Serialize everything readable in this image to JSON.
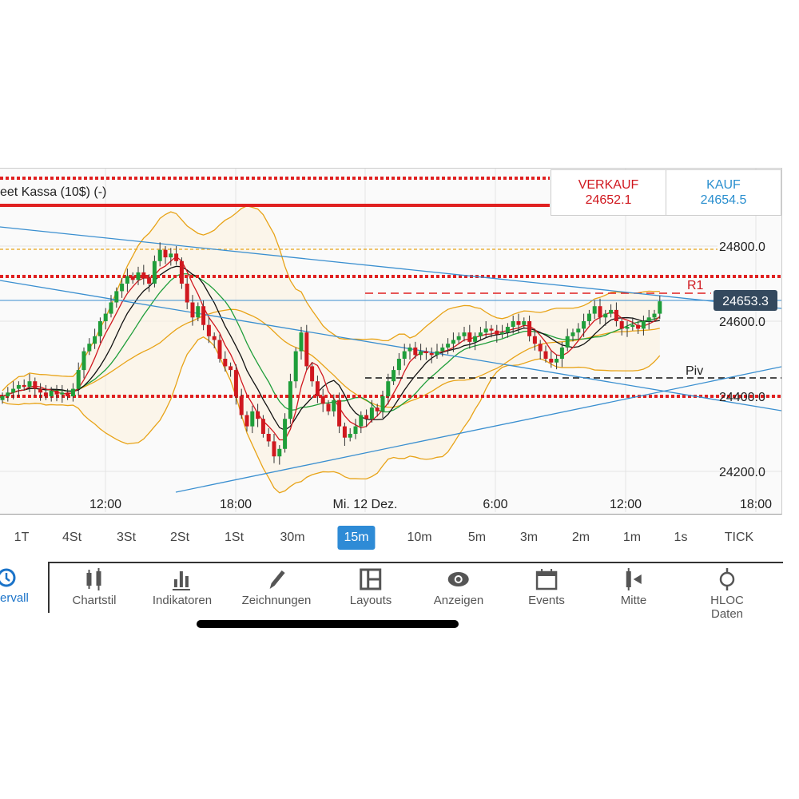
{
  "instrument_label": "eet Kassa (10$) (-)",
  "sell": {
    "label": "VERKAUF",
    "price": "24652.1",
    "color": "#d0181f"
  },
  "buy": {
    "label": "KAUF",
    "price": "24654.5",
    "color": "#2a8fcf"
  },
  "current_price": "24653.3",
  "levels": {
    "r1": "R1",
    "piv": "Piv"
  },
  "chart_data": {
    "type": "candlestick",
    "interval": "15m",
    "y_ticks": [
      "24800.0",
      "24600.0",
      "24400.0",
      "24200.0"
    ],
    "x_ticks": [
      "12:00",
      "18:00",
      "Mi. 12 Dez.",
      "6:00",
      "12:00",
      "18:00"
    ],
    "closes": [
      24400,
      24410,
      24420,
      24430,
      24425,
      24440,
      24420,
      24410,
      24400,
      24415,
      24405,
      24410,
      24400,
      24420,
      24470,
      24520,
      24540,
      24560,
      24600,
      24620,
      24650,
      24680,
      24700,
      24720,
      24710,
      24730,
      24715,
      24700,
      24760,
      24790,
      24770,
      24780,
      24760,
      24700,
      24650,
      24610,
      24640,
      24590,
      24560,
      24550,
      24500,
      24480,
      24470,
      24400,
      24350,
      24320,
      24360,
      24340,
      24300,
      24280,
      24240,
      24260,
      24340,
      24440,
      24520,
      24570,
      24480,
      24440,
      24400,
      24380,
      24360,
      24390,
      24320,
      24290,
      24300,
      24320,
      24350,
      24340,
      24370,
      24360,
      24400,
      24440,
      24470,
      24500,
      24520,
      24530,
      24510,
      24520,
      24515,
      24510,
      24520,
      24530,
      24540,
      24550,
      24560,
      24570,
      24545,
      24560,
      24570,
      24580,
      24575,
      24565,
      24570,
      24585,
      24600,
      24590,
      24600,
      24560,
      24540,
      24520,
      24500,
      24490,
      24500,
      24530,
      24560,
      24570,
      24580,
      24600,
      24620,
      24640,
      24610,
      24620,
      24630,
      24600,
      24580,
      24585,
      24590,
      24580,
      24600,
      24610,
      24620,
      24653
    ],
    "up_color": "#1f9e3a",
    "down_color": "#d0181f",
    "bollinger_color": "#e8a317",
    "grid": true
  },
  "intervals": [
    "1T",
    "4St",
    "3St",
    "2St",
    "1St",
    "30m",
    "15m",
    "10m",
    "5m",
    "3m",
    "2m",
    "1m",
    "1s",
    "TICK"
  ],
  "active_interval": "15m",
  "side_tab": "ervall",
  "tools": [
    "Chartstil",
    "Indikatoren",
    "Zeichnungen",
    "Layouts",
    "Anzeigen",
    "Events",
    "Mitte",
    "HLOC Daten"
  ]
}
